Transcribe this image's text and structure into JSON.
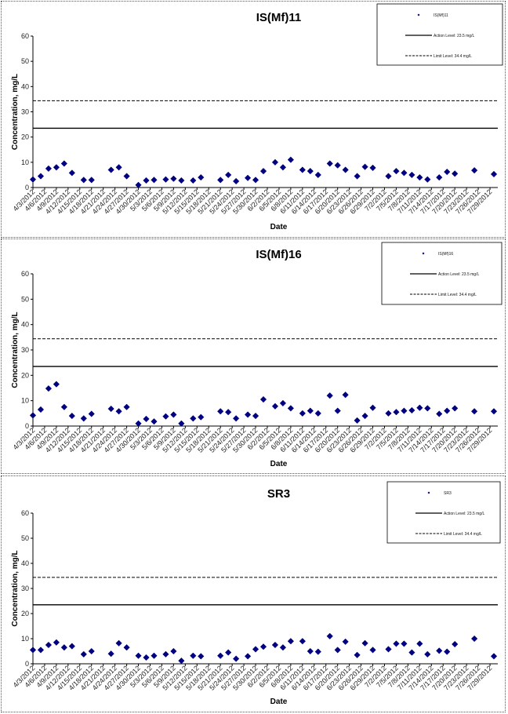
{
  "chart_data": [
    {
      "type": "scatter",
      "title": "IS(Mf)11",
      "xlabel": "Date",
      "ylabel": "Concentration, mg/L",
      "ylim": [
        0,
        60
      ],
      "yticks": [
        0,
        10,
        20,
        30,
        40,
        50,
        60
      ],
      "xlim": [
        "2012-04-03",
        "2012-07-31"
      ],
      "x_tick_labels": [
        "4/3/2012",
        "4/6/2012",
        "4/9/2012",
        "4/12/2012",
        "4/15/2012",
        "4/18/2012",
        "4/21/2012",
        "4/24/2012",
        "4/27/2012",
        "4/30/2012",
        "5/3/2012",
        "5/6/2012",
        "5/9/2012",
        "5/12/2012",
        "5/15/2012",
        "5/18/2012",
        "5/21/2012",
        "5/24/2012",
        "5/27/2012",
        "5/30/2012",
        "6/2/2012",
        "6/5/2012",
        "6/8/2012",
        "6/11/2012",
        "6/14/2012",
        "6/17/2012",
        "6/20/2012",
        "6/23/2012",
        "6/26/2012",
        "6/29/2012",
        "7/2/2012",
        "7/5/2012",
        "7/8/2012",
        "7/11/2012",
        "7/14/2012",
        "7/17/2012",
        "7/20/2012",
        "7/23/2012",
        "7/26/2012",
        "7/29/2012"
      ],
      "legend": {
        "placement": "top-right",
        "entries": [
          "IS(Mf)11",
          "Action Level: 23.5 mg/L",
          "Limit Level: 34.4 mg/L"
        ]
      },
      "reference_lines": [
        {
          "name": "Action Level: 23.5 mg/L",
          "y": 23.5,
          "style": "solid"
        },
        {
          "name": "Limit Level: 34.4 mg/L",
          "y": 34.4,
          "style": "dashed"
        }
      ],
      "series": [
        {
          "name": "IS(Mf)11",
          "marker": "diamond",
          "color": "#000080",
          "points": [
            [
              "2012-04-03",
              3.2
            ],
            [
              "2012-04-05",
              4.5
            ],
            [
              "2012-04-07",
              7.5
            ],
            [
              "2012-04-09",
              8
            ],
            [
              "2012-04-11",
              9.5
            ],
            [
              "2012-04-13",
              5.8
            ],
            [
              "2012-04-16",
              3
            ],
            [
              "2012-04-18",
              3
            ],
            [
              "2012-04-23",
              7
            ],
            [
              "2012-04-25",
              8
            ],
            [
              "2012-04-27",
              4.5
            ],
            [
              "2012-04-30",
              1
            ],
            [
              "2012-05-02",
              2.8
            ],
            [
              "2012-05-04",
              3
            ],
            [
              "2012-05-07",
              3.2
            ],
            [
              "2012-05-09",
              3.5
            ],
            [
              "2012-05-11",
              2.8
            ],
            [
              "2012-05-14",
              2.8
            ],
            [
              "2012-05-16",
              4
            ],
            [
              "2012-05-21",
              3
            ],
            [
              "2012-05-23",
              5
            ],
            [
              "2012-05-25",
              2.5
            ],
            [
              "2012-05-28",
              3.8
            ],
            [
              "2012-05-30",
              3
            ],
            [
              "2012-06-01",
              6.5
            ],
            [
              "2012-06-04",
              10
            ],
            [
              "2012-06-06",
              8
            ],
            [
              "2012-06-08",
              11
            ],
            [
              "2012-06-11",
              7
            ],
            [
              "2012-06-13",
              6.5
            ],
            [
              "2012-06-15",
              5
            ],
            [
              "2012-06-18",
              9.5
            ],
            [
              "2012-06-20",
              8.8
            ],
            [
              "2012-06-22",
              7
            ],
            [
              "2012-06-25",
              4.5
            ],
            [
              "2012-06-27",
              8.2
            ],
            [
              "2012-06-29",
              7.8
            ],
            [
              "2012-07-03",
              4.5
            ],
            [
              "2012-07-05",
              6.5
            ],
            [
              "2012-07-07",
              5.8
            ],
            [
              "2012-07-09",
              5
            ],
            [
              "2012-07-11",
              4
            ],
            [
              "2012-07-13",
              3.2
            ],
            [
              "2012-07-16",
              4
            ],
            [
              "2012-07-18",
              6.2
            ],
            [
              "2012-07-20",
              5.5
            ],
            [
              "2012-07-25",
              6.8
            ],
            [
              "2012-07-30",
              5.3
            ]
          ]
        }
      ]
    },
    {
      "type": "scatter",
      "title": "IS(Mf)16",
      "xlabel": "Date",
      "ylabel": "Concentration, mg/L",
      "ylim": [
        0,
        60
      ],
      "yticks": [
        0,
        10,
        20,
        30,
        40,
        50,
        60
      ],
      "xlim": [
        "2012-04-03",
        "2012-07-31"
      ],
      "x_tick_labels": [
        "4/3/2012",
        "4/6/2012",
        "4/9/2012",
        "4/12/2012",
        "4/15/2012",
        "4/18/2012",
        "4/21/2012",
        "4/24/2012",
        "4/27/2012",
        "4/30/2012",
        "5/3/2012",
        "5/6/2012",
        "5/9/2012",
        "5/12/2012",
        "5/15/2012",
        "5/18/2012",
        "5/21/2012",
        "5/24/2012",
        "5/27/2012",
        "5/30/2012",
        "6/2/2012",
        "6/5/2012",
        "6/8/2012",
        "6/11/2012",
        "6/14/2012",
        "6/17/2012",
        "6/20/2012",
        "6/23/2012",
        "6/26/2012",
        "6/29/2012",
        "7/2/2012",
        "7/5/2012",
        "7/8/2012",
        "7/11/2012",
        "7/14/2012",
        "7/17/2012",
        "7/20/2012",
        "7/23/2012",
        "7/26/2012",
        "7/29/2012"
      ],
      "legend": {
        "placement": "top-right",
        "entries": [
          "IS(Mf)16",
          "Action Level: 23.5 mg/L",
          "Limit Level: 34.4 mg/L"
        ]
      },
      "reference_lines": [
        {
          "name": "Action Level: 23.5 mg/L",
          "y": 23.5,
          "style": "solid"
        },
        {
          "name": "Limit Level: 34.4 mg/L",
          "y": 34.4,
          "style": "dashed"
        }
      ],
      "series": [
        {
          "name": "IS(Mf)16",
          "marker": "diamond",
          "color": "#000080",
          "points": [
            [
              "2012-04-03",
              4.2
            ],
            [
              "2012-04-05",
              6.5
            ],
            [
              "2012-04-07",
              14.8
            ],
            [
              "2012-04-09",
              16.5
            ],
            [
              "2012-04-11",
              7.5
            ],
            [
              "2012-04-13",
              4
            ],
            [
              "2012-04-16",
              3
            ],
            [
              "2012-04-18",
              4.8
            ],
            [
              "2012-04-23",
              6.8
            ],
            [
              "2012-04-25",
              5.8
            ],
            [
              "2012-04-27",
              7.5
            ],
            [
              "2012-04-30",
              1
            ],
            [
              "2012-05-02",
              2.8
            ],
            [
              "2012-05-04",
              1.8
            ],
            [
              "2012-05-07",
              3.8
            ],
            [
              "2012-05-09",
              4.5
            ],
            [
              "2012-05-11",
              1
            ],
            [
              "2012-05-14",
              3
            ],
            [
              "2012-05-16",
              3.5
            ],
            [
              "2012-05-21",
              5.8
            ],
            [
              "2012-05-23",
              5.5
            ],
            [
              "2012-05-25",
              3
            ],
            [
              "2012-05-28",
              4.5
            ],
            [
              "2012-05-30",
              4
            ],
            [
              "2012-06-01",
              10.5
            ],
            [
              "2012-06-04",
              7.8
            ],
            [
              "2012-06-06",
              9
            ],
            [
              "2012-06-08",
              7
            ],
            [
              "2012-06-11",
              5
            ],
            [
              "2012-06-13",
              6
            ],
            [
              "2012-06-15",
              5
            ],
            [
              "2012-06-18",
              12
            ],
            [
              "2012-06-20",
              6
            ],
            [
              "2012-06-22",
              12.3
            ],
            [
              "2012-06-25",
              2.2
            ],
            [
              "2012-06-27",
              4
            ],
            [
              "2012-06-29",
              7.2
            ],
            [
              "2012-07-03",
              5
            ],
            [
              "2012-07-05",
              5.5
            ],
            [
              "2012-07-07",
              6
            ],
            [
              "2012-07-09",
              6.2
            ],
            [
              "2012-07-11",
              7.2
            ],
            [
              "2012-07-13",
              7
            ],
            [
              "2012-07-16",
              4.8
            ],
            [
              "2012-07-18",
              6
            ],
            [
              "2012-07-20",
              7
            ],
            [
              "2012-07-25",
              5.8
            ],
            [
              "2012-07-30",
              5.8
            ]
          ]
        }
      ]
    },
    {
      "type": "scatter",
      "title": "SR3",
      "xlabel": "Date",
      "ylabel": "Concentration, mg/L",
      "ylim": [
        0,
        60
      ],
      "yticks": [
        0,
        10,
        20,
        30,
        40,
        50,
        60
      ],
      "xlim": [
        "2012-04-03",
        "2012-07-31"
      ],
      "x_tick_labels": [
        "4/3/2012",
        "4/6/2012",
        "4/9/2012",
        "4/12/2012",
        "4/15/2012",
        "4/18/2012",
        "4/21/2012",
        "4/24/2012",
        "4/27/2012",
        "4/30/2012",
        "5/3/2012",
        "5/6/2012",
        "5/9/2012",
        "5/12/2012",
        "5/15/2012",
        "5/18/2012",
        "5/21/2012",
        "5/24/2012",
        "5/27/2012",
        "5/30/2012",
        "6/2/2012",
        "6/5/2012",
        "6/8/2012",
        "6/11/2012",
        "6/14/2012",
        "6/17/2012",
        "6/20/2012",
        "6/23/2012",
        "6/26/2012",
        "6/29/2012",
        "7/2/2012",
        "7/5/2012",
        "7/8/2012",
        "7/11/2012",
        "7/14/2012",
        "7/17/2012",
        "7/20/2012",
        "7/23/2012",
        "7/26/2012",
        "7/29/2012"
      ],
      "legend": {
        "placement": "top-right",
        "entries": [
          "SR3",
          "Action Level: 23.5 mg/L",
          "Limit Level: 34.4 mg/L"
        ]
      },
      "reference_lines": [
        {
          "name": "Action Level: 23.5 mg/L",
          "y": 23.5,
          "style": "solid"
        },
        {
          "name": "Limit Level: 34.4 mg/L",
          "y": 34.4,
          "style": "dashed"
        }
      ],
      "series": [
        {
          "name": "SR3",
          "marker": "diamond",
          "color": "#000080",
          "points": [
            [
              "2012-04-03",
              5.5
            ],
            [
              "2012-04-05",
              5.5
            ],
            [
              "2012-04-07",
              7.5
            ],
            [
              "2012-04-09",
              8.5
            ],
            [
              "2012-04-11",
              6.5
            ],
            [
              "2012-04-13",
              7
            ],
            [
              "2012-04-16",
              3.8
            ],
            [
              "2012-04-18",
              5
            ],
            [
              "2012-04-23",
              4
            ],
            [
              "2012-04-25",
              8.2
            ],
            [
              "2012-04-27",
              6.5
            ],
            [
              "2012-04-30",
              3.2
            ],
            [
              "2012-05-02",
              2.5
            ],
            [
              "2012-05-04",
              3.2
            ],
            [
              "2012-05-07",
              3.8
            ],
            [
              "2012-05-09",
              5
            ],
            [
              "2012-05-11",
              1.2
            ],
            [
              "2012-05-14",
              3.2
            ],
            [
              "2012-05-16",
              3
            ],
            [
              "2012-05-21",
              3.2
            ],
            [
              "2012-05-23",
              4.5
            ],
            [
              "2012-05-25",
              2
            ],
            [
              "2012-05-28",
              3
            ],
            [
              "2012-05-30",
              5.8
            ],
            [
              "2012-06-01",
              6.8
            ],
            [
              "2012-06-04",
              7.5
            ],
            [
              "2012-06-06",
              6.5
            ],
            [
              "2012-06-08",
              9
            ],
            [
              "2012-06-11",
              9
            ],
            [
              "2012-06-13",
              5
            ],
            [
              "2012-06-15",
              4.8
            ],
            [
              "2012-06-18",
              11
            ],
            [
              "2012-06-20",
              5.5
            ],
            [
              "2012-06-22",
              8.8
            ],
            [
              "2012-06-25",
              3.5
            ],
            [
              "2012-06-27",
              8.2
            ],
            [
              "2012-06-29",
              5.5
            ],
            [
              "2012-07-03",
              5.8
            ],
            [
              "2012-07-05",
              8
            ],
            [
              "2012-07-07",
              8
            ],
            [
              "2012-07-09",
              4.5
            ],
            [
              "2012-07-11",
              8
            ],
            [
              "2012-07-13",
              3.8
            ],
            [
              "2012-07-16",
              5.2
            ],
            [
              "2012-07-18",
              4.8
            ],
            [
              "2012-07-20",
              7.8
            ],
            [
              "2012-07-25",
              10
            ],
            [
              "2012-07-30",
              3
            ]
          ]
        }
      ]
    }
  ]
}
